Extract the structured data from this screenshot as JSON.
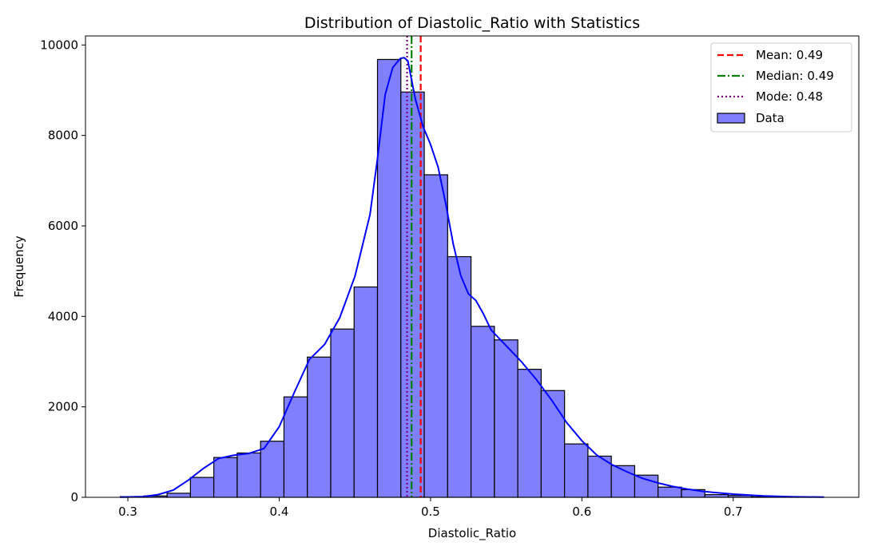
{
  "chart_data": {
    "type": "bar",
    "title": "Distribution of Diastolic_Ratio with Statistics",
    "xlabel": "Diastolic_Ratio",
    "ylabel": "Frequency",
    "xlim": [
      0.272,
      0.783
    ],
    "ylim": [
      0,
      10200
    ],
    "x_ticks": [
      0.3,
      0.4,
      0.5,
      0.6,
      0.7
    ],
    "x_tick_labels": [
      "0.3",
      "0.4",
      "0.5",
      "0.6",
      "0.7"
    ],
    "y_ticks": [
      0,
      2000,
      4000,
      6000,
      8000,
      10000
    ],
    "y_tick_labels": [
      "0",
      "2000",
      "4000",
      "6000",
      "8000",
      "10000"
    ],
    "grid": false,
    "bins": {
      "start": 0.295,
      "width": 0.01545,
      "counts": [
        15,
        30,
        90,
        440,
        880,
        980,
        1240,
        2220,
        3100,
        3720,
        4650,
        9680,
        8960,
        7130,
        5320,
        3780,
        3480,
        2830,
        2360,
        1180,
        910,
        700,
        490,
        225,
        170,
        60,
        40,
        12,
        8,
        5
      ],
      "fill": "#8080FF",
      "edge": "#000000"
    },
    "kde": {
      "color": "#0000FF",
      "x": [
        0.295,
        0.31,
        0.32,
        0.33,
        0.34,
        0.35,
        0.36,
        0.37,
        0.38,
        0.39,
        0.4,
        0.41,
        0.42,
        0.43,
        0.44,
        0.45,
        0.46,
        0.465,
        0.47,
        0.475,
        0.48,
        0.4825,
        0.485,
        0.49,
        0.495,
        0.5,
        0.505,
        0.51,
        0.515,
        0.52,
        0.525,
        0.53,
        0.535,
        0.54,
        0.55,
        0.56,
        0.57,
        0.58,
        0.59,
        0.6,
        0.61,
        0.62,
        0.63,
        0.64,
        0.65,
        0.66,
        0.67,
        0.68,
        0.7,
        0.72,
        0.74,
        0.76
      ],
      "y": [
        5,
        15,
        60,
        160,
        380,
        640,
        860,
        930,
        970,
        1080,
        1560,
        2320,
        3050,
        3380,
        3970,
        4880,
        6250,
        7500,
        8900,
        9500,
        9700,
        9720,
        9650,
        8800,
        8200,
        7800,
        7300,
        6500,
        5600,
        4900,
        4500,
        4350,
        4050,
        3700,
        3350,
        3000,
        2600,
        2150,
        1650,
        1250,
        930,
        720,
        560,
        420,
        320,
        240,
        180,
        130,
        70,
        30,
        12,
        5
      ]
    },
    "stat_lines": [
      {
        "name": "Mean: 0.49",
        "value": 0.4935,
        "color": "#FF0000",
        "dash": "8,4"
      },
      {
        "name": "Median: 0.49",
        "value": 0.4875,
        "color": "#008000",
        "dash": "10,3,2,3"
      },
      {
        "name": "Mode: 0.48",
        "value": 0.4845,
        "color": "#800080",
        "dash": "2,3"
      }
    ],
    "legend": {
      "placement": "top-right",
      "entries": [
        "Mean: 0.49",
        "Median: 0.49",
        "Mode: 0.48",
        "Data"
      ]
    }
  }
}
